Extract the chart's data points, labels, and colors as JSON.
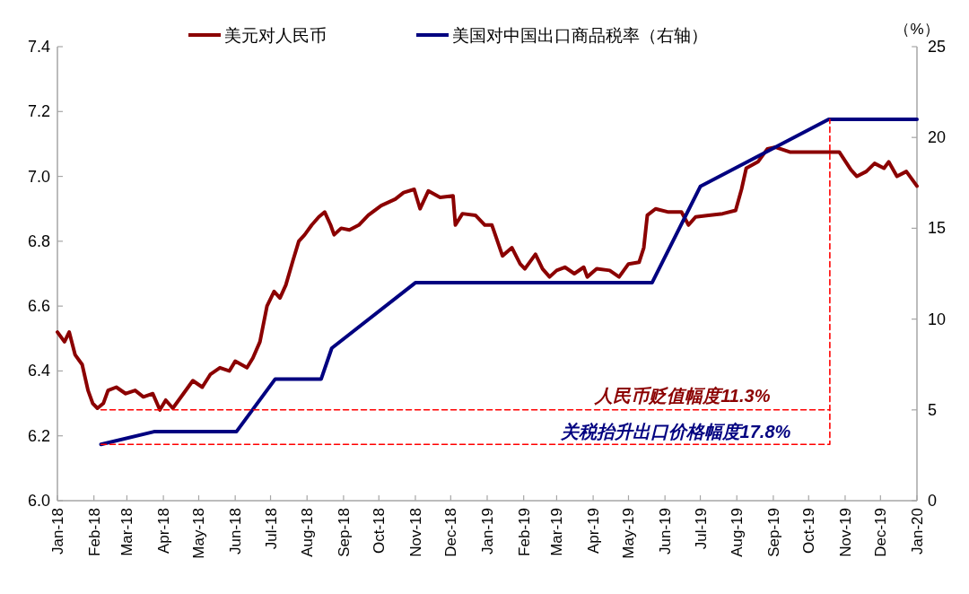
{
  "chart_data": {
    "type": "line",
    "y2label": "（%）",
    "xlim": [
      "2018-01-01",
      "2020-01-01"
    ],
    "xticks": [
      {
        "value": "2018-01",
        "label": "Jan-18"
      },
      {
        "value": "2018-02",
        "label": "Feb-18"
      },
      {
        "value": "2018-03",
        "label": "Mar-18"
      },
      {
        "value": "2018-04",
        "label": "Apr-18"
      },
      {
        "value": "2018-05",
        "label": "May-18"
      },
      {
        "value": "2018-06",
        "label": "Jun-18"
      },
      {
        "value": "2018-07",
        "label": "Jul-18"
      },
      {
        "value": "2018-08",
        "label": "Aug-18"
      },
      {
        "value": "2018-09",
        "label": "Sep-18"
      },
      {
        "value": "2018-10",
        "label": "Oct-18"
      },
      {
        "value": "2018-11",
        "label": "Nov-18"
      },
      {
        "value": "2018-12",
        "label": "Dec-18"
      },
      {
        "value": "2019-01",
        "label": "Jan-19"
      },
      {
        "value": "2019-02",
        "label": "Feb-19"
      },
      {
        "value": "2019-03",
        "label": "Mar-19"
      },
      {
        "value": "2019-04",
        "label": "Apr-19"
      },
      {
        "value": "2019-05",
        "label": "May-19"
      },
      {
        "value": "2019-06",
        "label": "Jun-19"
      },
      {
        "value": "2019-07",
        "label": "Jul-19"
      },
      {
        "value": "2019-08",
        "label": "Aug-19"
      },
      {
        "value": "2019-09",
        "label": "Sep-19"
      },
      {
        "value": "2019-10",
        "label": "Oct-19"
      },
      {
        "value": "2019-11",
        "label": "Nov-19"
      },
      {
        "value": "2019-12",
        "label": "Dec-19"
      },
      {
        "value": "2020-01",
        "label": "Jan-20"
      }
    ],
    "ylim": [
      6.0,
      7.4
    ],
    "yticks": [
      {
        "value": 6.0,
        "label": "6.0"
      },
      {
        "value": 6.2,
        "label": "6.2"
      },
      {
        "value": 6.4,
        "label": "6.4"
      },
      {
        "value": 6.6,
        "label": "6.6"
      },
      {
        "value": 6.8,
        "label": "6.8"
      },
      {
        "value": 7.0,
        "label": "7.0"
      },
      {
        "value": 7.2,
        "label": "7.2"
      },
      {
        "value": 7.4,
        "label": "7.4"
      }
    ],
    "y2lim": [
      0,
      25
    ],
    "y2ticks": [
      0,
      5,
      10,
      15,
      20,
      25
    ],
    "legend": "top",
    "series": [
      {
        "name": "美元对人民币",
        "color": "#8b0000",
        "x": [
          "2018-01-01",
          "2018-01-07",
          "2018-01-11",
          "2018-01-16",
          "2018-01-22",
          "2018-01-27",
          "2018-01-31",
          "2018-02-04",
          "2018-02-09",
          "2018-02-13",
          "2018-02-20",
          "2018-02-28",
          "2018-03-08",
          "2018-03-15",
          "2018-03-23",
          "2018-03-29",
          "2018-04-03",
          "2018-04-09",
          "2018-04-18",
          "2018-04-26",
          "2018-05-04",
          "2018-05-11",
          "2018-05-19",
          "2018-05-27",
          "2018-06-01",
          "2018-06-11",
          "2018-06-16",
          "2018-06-22",
          "2018-06-28",
          "2018-07-04",
          "2018-07-09",
          "2018-07-14",
          "2018-07-20",
          "2018-07-25",
          "2018-07-30",
          "2018-08-05",
          "2018-08-11",
          "2018-08-16",
          "2018-08-21",
          "2018-08-24",
          "2018-08-30",
          "2018-09-06",
          "2018-09-14",
          "2018-09-22",
          "2018-10-03",
          "2018-10-15",
          "2018-10-22",
          "2018-10-31",
          "2018-11-05",
          "2018-11-12",
          "2018-11-22",
          "2018-12-03",
          "2018-12-05",
          "2018-12-11",
          "2018-12-22",
          "2018-12-30",
          "2019-01-05",
          "2019-01-14",
          "2019-01-22",
          "2019-01-29",
          "2019-02-02",
          "2019-02-11",
          "2019-02-17",
          "2019-02-23",
          "2019-03-01",
          "2019-03-08",
          "2019-03-16",
          "2019-03-24",
          "2019-03-27",
          "2019-04-04",
          "2019-04-15",
          "2019-04-23",
          "2019-05-01",
          "2019-05-10",
          "2019-05-14",
          "2019-05-17",
          "2019-05-24",
          "2019-06-04",
          "2019-06-15",
          "2019-06-21",
          "2019-06-27",
          "2019-07-08",
          "2019-07-20",
          "2019-07-31",
          "2019-08-05",
          "2019-08-09",
          "2019-08-19",
          "2019-08-27",
          "2019-09-03",
          "2019-09-15",
          "2019-09-30",
          "2019-10-19",
          "2019-10-27",
          "2019-11-06",
          "2019-11-11",
          "2019-11-19",
          "2019-11-26",
          "2019-12-04",
          "2019-12-08",
          "2019-12-15",
          "2019-12-23",
          "2020-01-01"
        ],
        "values": [
          6.52,
          6.49,
          6.52,
          6.45,
          6.42,
          6.34,
          6.3,
          6.285,
          6.3,
          6.34,
          6.35,
          6.33,
          6.34,
          6.32,
          6.33,
          6.28,
          6.31,
          6.285,
          6.33,
          6.37,
          6.35,
          6.39,
          6.41,
          6.4,
          6.43,
          6.41,
          6.44,
          6.49,
          6.6,
          6.645,
          6.625,
          6.665,
          6.74,
          6.8,
          6.82,
          6.85,
          6.875,
          6.89,
          6.85,
          6.82,
          6.84,
          6.835,
          6.85,
          6.88,
          6.91,
          6.93,
          6.95,
          6.96,
          6.9,
          6.955,
          6.935,
          6.94,
          6.85,
          6.885,
          6.88,
          6.85,
          6.85,
          6.755,
          6.78,
          6.73,
          6.715,
          6.76,
          6.715,
          6.69,
          6.71,
          6.72,
          6.7,
          6.72,
          6.69,
          6.715,
          6.71,
          6.69,
          6.73,
          6.735,
          6.78,
          6.88,
          6.9,
          6.89,
          6.89,
          6.85,
          6.875,
          6.88,
          6.885,
          6.895,
          6.96,
          7.025,
          7.045,
          7.085,
          7.09,
          7.075,
          7.075,
          7.075,
          7.075,
          7.02,
          7.0,
          7.015,
          7.04,
          7.025,
          7.045,
          7.0,
          7.015,
          6.97
        ]
      },
      {
        "name": "美国对中国出口商品税率（右轴）",
        "color": "#000080",
        "axis": "y2",
        "x": [
          "2018-02-07",
          "2018-03-24",
          "2018-06-02",
          "2018-07-05",
          "2018-08-13",
          "2018-08-22",
          "2018-11-01",
          "2019-05-21",
          "2019-07-01",
          "2019-10-18",
          "2020-01-01"
        ],
        "values": [
          3.1,
          3.8,
          3.8,
          6.7,
          6.7,
          8.4,
          12.0,
          12.0,
          17.3,
          21.0,
          21.0
        ]
      },
      {
        "color": "#ff0000",
        "line_style": "dashed",
        "x": [
          "2018-02-07",
          "2019-10-19"
        ],
        "values": [
          6.28,
          6.28
        ]
      },
      {
        "color": "#ff0000",
        "line_style": "dashed",
        "axis": "y2",
        "x": [
          "2018-02-07",
          "2019-10-19",
          "2019-10-19"
        ],
        "values": [
          3.1,
          3.1,
          21.0
        ]
      }
    ],
    "annotations": [
      {
        "text": "人民币贬值幅度11.3%",
        "x": "2019-06-16",
        "y": 6.28
      },
      {
        "text": "关税抬升出口价格幅度17.8%",
        "x": "2019-06-10",
        "y": 6.17
      }
    ]
  }
}
